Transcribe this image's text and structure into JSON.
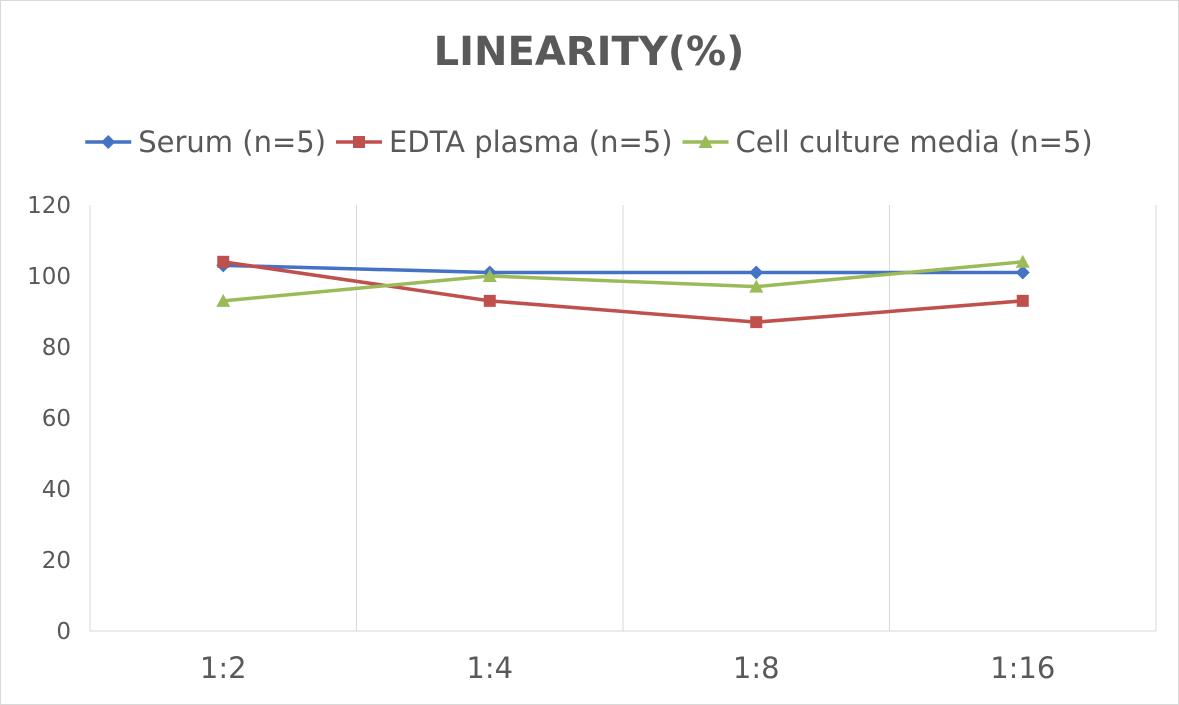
{
  "chart_data": {
    "type": "line",
    "title": "LINEARITY(%)",
    "xlabel": "",
    "ylabel": "",
    "categories": [
      "1:2",
      "1:4",
      "1:8",
      "1:16"
    ],
    "ylim": [
      0,
      120
    ],
    "yticks": [
      0,
      20,
      40,
      60,
      80,
      100,
      120
    ],
    "grid": true,
    "legend_position": "top",
    "series": [
      {
        "name": "Serum (n=5)",
        "values": [
          103,
          101,
          101,
          101
        ],
        "color": "#4472c4",
        "marker": "diamond"
      },
      {
        "name": "EDTA plasma (n=5)",
        "values": [
          104,
          93,
          87,
          93
        ],
        "color": "#c0504d",
        "marker": "square"
      },
      {
        "name": "Cell culture media (n=5)",
        "values": [
          93,
          100,
          97,
          104
        ],
        "color": "#9bbb59",
        "marker": "triangle"
      }
    ]
  }
}
